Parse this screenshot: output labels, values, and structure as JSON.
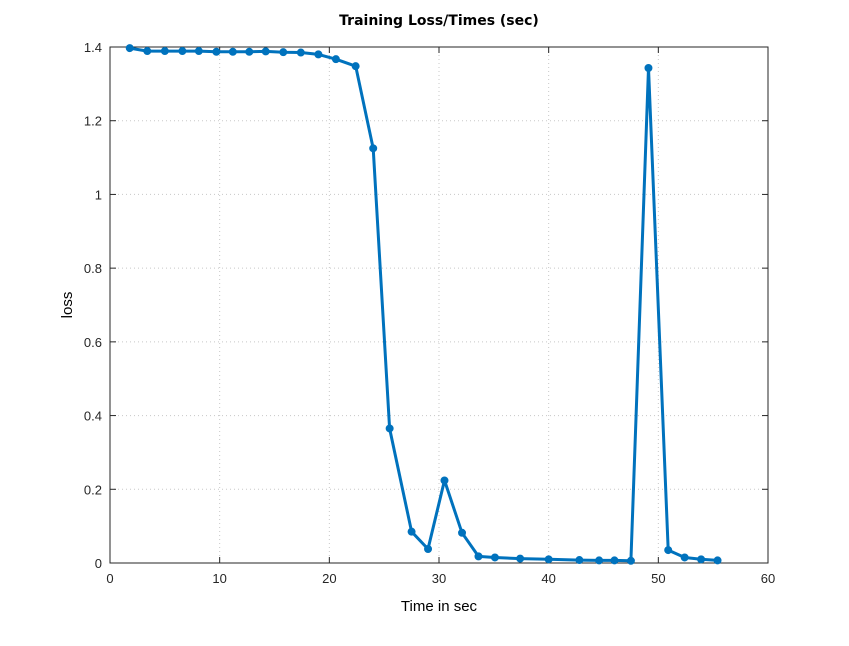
{
  "chart_data": {
    "type": "line",
    "title": "Training Loss/Times (sec)",
    "xlabel": "Time in sec",
    "ylabel": "loss",
    "xlim": [
      0,
      60
    ],
    "ylim": [
      0,
      1.4
    ],
    "xticks": [
      0,
      10,
      20,
      30,
      40,
      50,
      60
    ],
    "xtick_labels": [
      "0",
      "10",
      "20",
      "30",
      "40",
      "50",
      "60"
    ],
    "yticks": [
      0,
      0.2,
      0.4,
      0.6,
      0.8,
      1.0,
      1.2,
      1.4
    ],
    "ytick_labels": [
      "0",
      "0.2",
      "0.4",
      "0.6",
      "0.8",
      "1",
      "1.2",
      "1.4"
    ],
    "grid": true,
    "legend": "none",
    "series": [
      {
        "color": "#0072bd",
        "x": [
          1.8,
          3.4,
          5.0,
          6.6,
          8.1,
          9.7,
          11.2,
          12.7,
          14.2,
          15.8,
          17.4,
          19.0,
          20.6,
          22.4,
          24.0,
          25.5,
          27.5,
          29.0,
          30.5,
          32.1,
          33.6,
          35.1,
          37.4,
          40.0,
          42.8,
          44.6,
          46.0,
          47.5,
          49.1,
          50.9,
          52.4,
          53.9,
          55.4
        ],
        "y": [
          1.397,
          1.389,
          1.389,
          1.389,
          1.389,
          1.387,
          1.387,
          1.387,
          1.388,
          1.386,
          1.385,
          1.38,
          1.367,
          1.348,
          1.125,
          0.365,
          0.085,
          0.038,
          0.224,
          0.082,
          0.018,
          0.015,
          0.012,
          0.01,
          0.008,
          0.007,
          0.007,
          0.006,
          1.343,
          0.035,
          0.015,
          0.01,
          0.007
        ]
      }
    ]
  }
}
